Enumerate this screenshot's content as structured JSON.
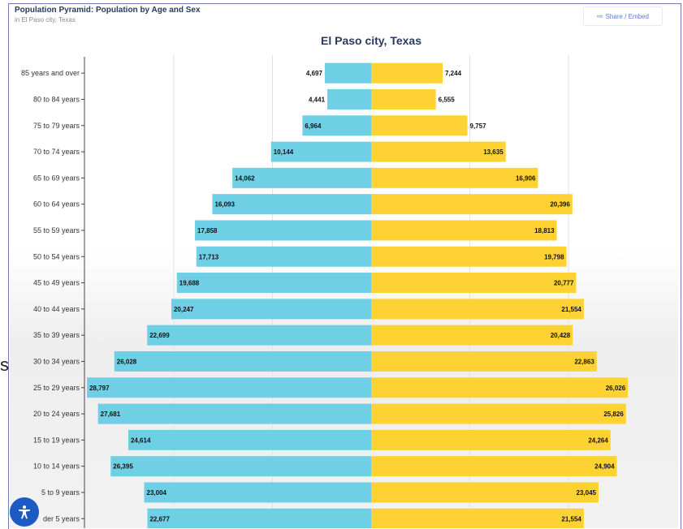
{
  "header": {
    "title": "Population Pyramid: Population by Age and Sex",
    "subtitle": "in El Paso city, Texas"
  },
  "share_button": {
    "label": "Share / Embed",
    "icon": "share-icon"
  },
  "left_mark": "s",
  "accessibility": {
    "icon": "accessibility-icon"
  },
  "colors": {
    "male": "#6fd0e5",
    "female": "#ffd233"
  },
  "chart_data": {
    "type": "bar",
    "orientation": "horizontal-pyramid",
    "title": "El Paso city, Texas",
    "categories": [
      "85 years and over",
      "80 to 84 years",
      "75 to 79 years",
      "70 to 74 years",
      "65 to 69 years",
      "60 to 64 years",
      "55 to 59 years",
      "50 to 54 years",
      "45 to 49 years",
      "40 to 44 years",
      "35 to 39 years",
      "30 to 34 years",
      "25 to 29 years",
      "20 to 24 years",
      "15 to 19 years",
      "10 to 14 years",
      "5 to 9 years",
      "Under 5 years"
    ],
    "category_labels_shown": [
      "85 years and over",
      "80 to 84 years",
      "75 to 79 years",
      "70 to 74 years",
      "65 to 69 years",
      "60 to 64 years",
      "55 to 59 years",
      "50 to 54 years",
      "45 to 49 years",
      "40 to 44 years",
      "35 to 39 years",
      "30 to 34 years",
      "25 to 29 years",
      "20 to 24 years",
      "15 to 19 years",
      "10 to 14 years",
      "5 to 9 years",
      "der 5 years"
    ],
    "series": [
      {
        "values": [
          4697,
          4441,
          6964,
          10144,
          14062,
          16093,
          17858,
          17713,
          19688,
          20247,
          22699,
          26028,
          28797,
          27681,
          24614,
          26395,
          23004,
          22677
        ]
      },
      {
        "values": [
          7244,
          6555,
          9757,
          13635,
          16906,
          20396,
          18813,
          19798,
          20777,
          21554,
          20428,
          22863,
          26026,
          25826,
          24264,
          24904,
          23045,
          21554
        ]
      }
    ],
    "value_labels_left": [
      "4,697",
      "4,441",
      "6,964",
      "10,144",
      "14,062",
      "16,093",
      "17,858",
      "17,713",
      "19,688",
      "20,247",
      "22,699",
      "26,028",
      "28,797",
      "27,681",
      "24,614",
      "26,395",
      "23,004",
      "22,677"
    ],
    "value_labels_right": [
      "7,244",
      "6,555",
      "9,757",
      "13,635",
      "16,906",
      "20,396",
      "18,813",
      "19,798",
      "20,777",
      "21,554",
      "20,428",
      "22,863",
      "26,026",
      "25,826",
      "24,264",
      "24,904",
      "23,045",
      "21,554"
    ],
    "xlim": [
      -30000,
      30000
    ],
    "grid": true
  }
}
